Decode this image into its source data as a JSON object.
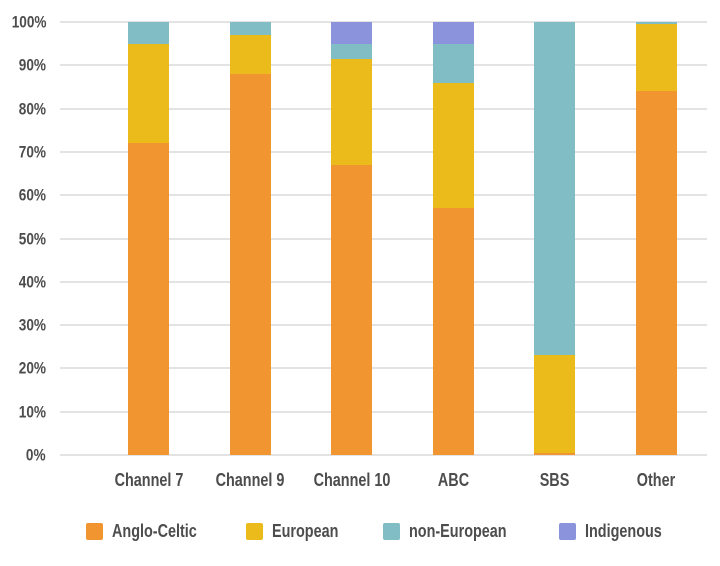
{
  "colors": {
    "anglo_celtic": "#F0952F",
    "european": "#EABB1A",
    "non_european": "#81BDC5",
    "indigenous": "#8A93DC",
    "gridline": "#E3E3E3",
    "text": "#4D4D4D",
    "background": "#FFFFFF"
  },
  "chart_data": {
    "type": "bar",
    "stacked": true,
    "title": "",
    "xlabel": "",
    "ylabel": "",
    "ylim": [
      0,
      100
    ],
    "grid": "horizontal",
    "legend_position": "bottom",
    "y_ticks": [
      "0%",
      "10%",
      "20%",
      "30%",
      "40%",
      "50%",
      "60%",
      "70%",
      "80%",
      "90%",
      "100%"
    ],
    "categories": [
      "Channel 7",
      "Channel 9",
      "Channel 10",
      "ABC",
      "SBS",
      "Other"
    ],
    "series": [
      {
        "name": "Anglo-Celtic",
        "color": "#F0952F",
        "values": [
          72,
          88,
          67,
          57,
          0.5,
          84
        ]
      },
      {
        "name": "European",
        "color": "#EABB1A",
        "values": [
          23,
          9,
          24.5,
          29,
          22.5,
          15.5
        ]
      },
      {
        "name": "non-European",
        "color": "#81BDC5",
        "values": [
          5,
          3,
          3.5,
          9,
          77,
          0.5
        ]
      },
      {
        "name": "Indigenous",
        "color": "#8A93DC",
        "values": [
          0,
          0,
          5,
          5,
          0,
          0
        ]
      }
    ]
  }
}
